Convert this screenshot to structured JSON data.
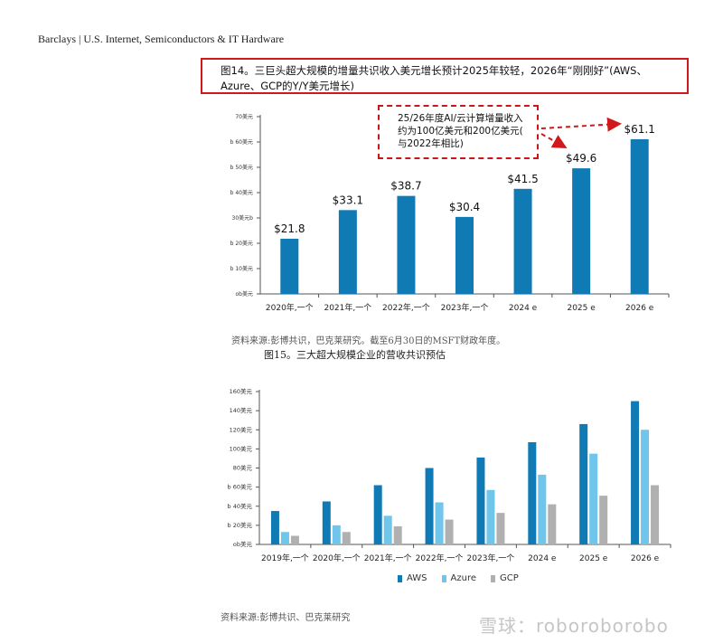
{
  "header": {
    "text": "Barclays | U.S. Internet, Semiconductors & IT Hardware"
  },
  "fig14": {
    "title": "图14。三巨头超大规模的增量共识收入美元增长预计2025年较轻，2026年“刚刚好”(AWS、Azure、GCP的Y/Y美元增长)",
    "callout_lines": [
      "25/26年度AI/云计算增量收入",
      "约为100亿美元和200亿美元(",
      "与2022年相比)"
    ],
    "source": "资料来源:彭博共识，巴克莱研究。截至6月30日的MSFT财政年度。"
  },
  "fig15": {
    "title": "图15。三大超大规模企业的营收共识预估",
    "source": "资料来源:彭博共识、巴克莱研究"
  },
  "watermark": "雪球：roboroborobo",
  "colors": {
    "aws": "#0f7ab3",
    "azure": "#6fc5ea",
    "gcp": "#b0b0b0",
    "highlight": "#d0191c"
  },
  "chart_data": [
    {
      "type": "bar",
      "categories": [
        "2020年,一个",
        "2021年,一个",
        "2022年,一个",
        "2023年,一个",
        "2024 e",
        "2025 e",
        "2026 e"
      ],
      "values": [
        21.8,
        33.1,
        38.7,
        30.4,
        41.5,
        49.6,
        61.1
      ],
      "data_labels": [
        "$21.8",
        "$33.1",
        "$38.7",
        "$30.4",
        "$41.5",
        "$49.6",
        "$61.1"
      ],
      "y_tick_labels": [
        "ob美元",
        "b 10美元",
        "b 20美元",
        "30美元b",
        "b 40美元",
        "b 50美元",
        "b 60美元",
        "70美元"
      ],
      "ylim": [
        0,
        70
      ],
      "grid": false
    },
    {
      "type": "bar",
      "categories": [
        "2019年,一个",
        "2020年,一个",
        "2021年,一个",
        "2022年,一个",
        "2023年,一个",
        "2024 e",
        "2025 e",
        "2026 e"
      ],
      "series": [
        {
          "name": "AWS",
          "values": [
            35,
            45,
            62,
            80,
            91,
            107,
            126,
            150
          ]
        },
        {
          "name": "Azure",
          "values": [
            13,
            20,
            30,
            44,
            57,
            73,
            95,
            120
          ]
        },
        {
          "name": "GCP",
          "values": [
            9,
            13,
            19,
            26,
            33,
            42,
            51,
            62
          ]
        }
      ],
      "y_tick_labels": [
        "ob美元",
        "b 20美元",
        "b 40美元",
        "b 60美元",
        "80美元",
        "100美元",
        "120美元",
        "140美元",
        "160美元"
      ],
      "ylim": [
        0,
        160
      ],
      "legend_position": "bottom",
      "grid": false
    }
  ]
}
